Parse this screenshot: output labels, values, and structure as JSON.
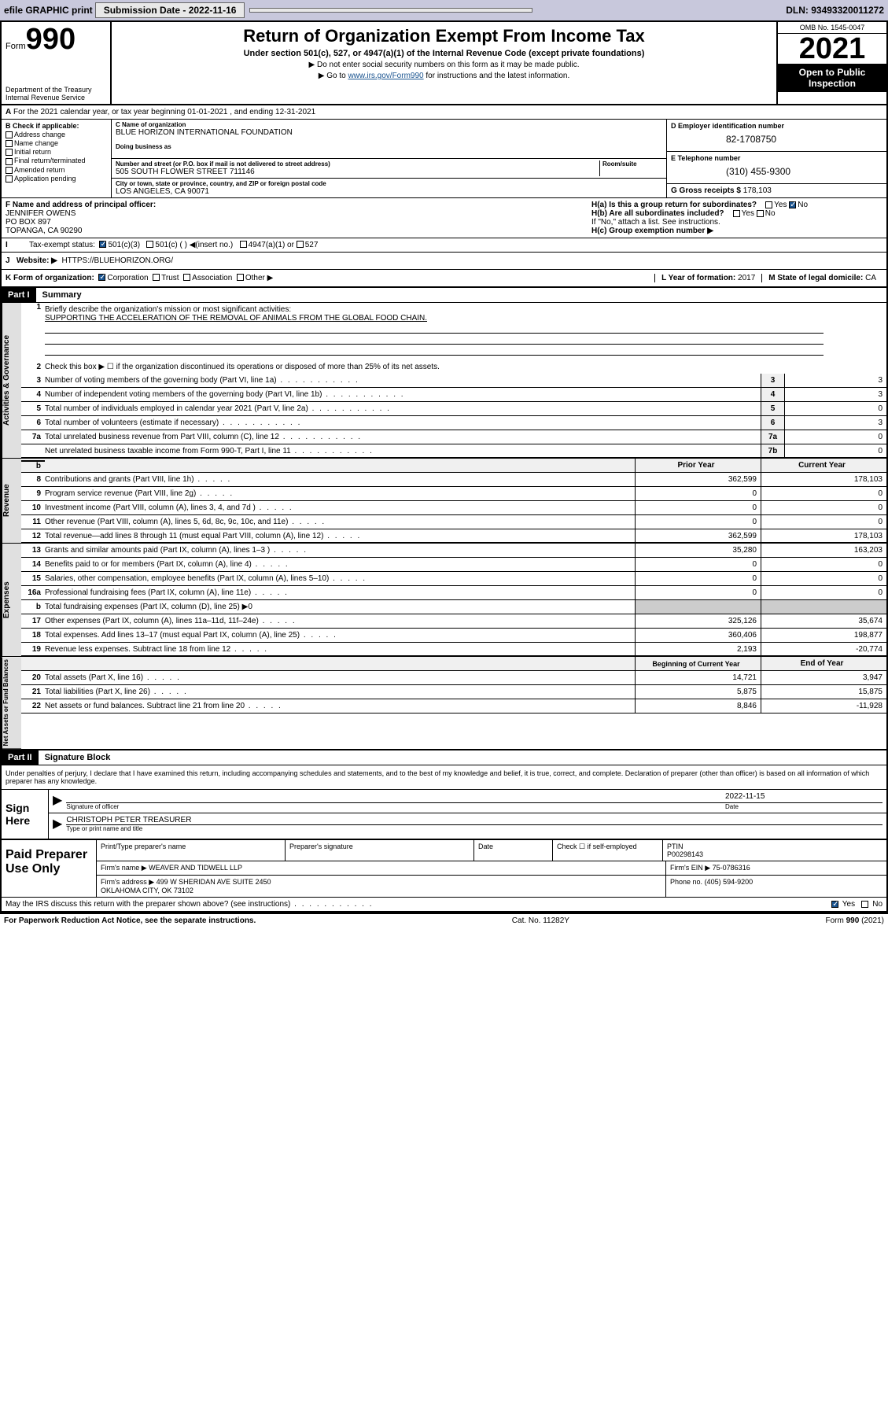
{
  "topbar": {
    "efile": "efile GRAPHIC print",
    "subdate_lbl": "Submission Date - 2022-11-16",
    "dln": "DLN: 93493320011272"
  },
  "header": {
    "form_word": "Form",
    "form_no": "990",
    "title": "Return of Organization Exempt From Income Tax",
    "sub1": "Under section 501(c), 527, or 4947(a)(1) of the Internal Revenue Code (except private foundations)",
    "sub2a": "▶ Do not enter social security numbers on this form as it may be made public.",
    "sub2b_pre": "▶ Go to ",
    "sub2b_link": "www.irs.gov/Form990",
    "sub2b_post": " for instructions and the latest information.",
    "dept": "Department of the Treasury\nInternal Revenue Service",
    "omb": "OMB No. 1545-0047",
    "year": "2021",
    "otp": "Open to Public Inspection"
  },
  "secA": {
    "tax_year": "For the 2021 calendar year, or tax year beginning 01-01-2021    , and ending 12-31-2021",
    "b_lbl": "B Check if applicable:",
    "checks": [
      "Address change",
      "Name change",
      "Initial return",
      "Final return/terminated",
      "Amended return",
      "Application pending"
    ],
    "c_lbl": "C Name of organization",
    "org_name": "BLUE HORIZON INTERNATIONAL FOUNDATION",
    "dba_lbl": "Doing business as",
    "addr_lbl": "Number and street (or P.O. box if mail is not delivered to street address)",
    "room_lbl": "Room/suite",
    "addr": "505 SOUTH FLOWER STREET 711146",
    "city_lbl": "City or town, state or province, country, and ZIP or foreign postal code",
    "city": "LOS ANGELES, CA  90071",
    "d_lbl": "D Employer identification number",
    "ein": "82-1708750",
    "e_lbl": "E Telephone number",
    "phone": "(310) 455-9300",
    "g_lbl": "G Gross receipts $",
    "gross": "178,103",
    "f_lbl": "F Name and address of principal officer:",
    "officer": "JENNIFER OWENS\nPO BOX 897\nTOPANGA, CA  90290",
    "ha": "H(a) Is this a group return for subordinates?",
    "hb": "H(b) Are all subordinates included?",
    "hb_note": "If \"No,\" attach a list. See instructions.",
    "hc": "H(c) Group exemption number ▶",
    "i_lbl": "Tax-exempt status:",
    "i_501c3": "501(c)(3)",
    "i_501c": "501(c) (  ) ◀(insert no.)",
    "i_4947": "4947(a)(1) or",
    "i_527": "527",
    "j_lbl": "Website: ▶",
    "website": "HTTPS://BLUEHORIZON.ORG/",
    "k_lbl": "K Form of organization:",
    "k_opts": [
      "Corporation",
      "Trust",
      "Association",
      "Other ▶"
    ],
    "l_lbl": "L Year of formation:",
    "l_val": "2017",
    "m_lbl": "M State of legal domicile:",
    "m_val": "CA"
  },
  "part1": {
    "hdr": "Part I",
    "title": "Summary",
    "r1_lbl": "Briefly describe the organization's mission or most significant activities:",
    "r1_val": "SUPPORTING THE ACCELERATION OF THE REMOVAL OF ANIMALS FROM THE GLOBAL FOOD CHAIN.",
    "r2": "Check this box ▶ ☐ if the organization discontinued its operations or disposed of more than 25% of its net assets.",
    "rows_gov": [
      {
        "n": "3",
        "t": "Number of voting members of the governing body (Part VI, line 1a)",
        "k": "3",
        "v": "3"
      },
      {
        "n": "4",
        "t": "Number of independent voting members of the governing body (Part VI, line 1b)",
        "k": "4",
        "v": "3"
      },
      {
        "n": "5",
        "t": "Total number of individuals employed in calendar year 2021 (Part V, line 2a)",
        "k": "5",
        "v": "0"
      },
      {
        "n": "6",
        "t": "Total number of volunteers (estimate if necessary)",
        "k": "6",
        "v": "3"
      },
      {
        "n": "7a",
        "t": "Total unrelated business revenue from Part VIII, column (C), line 12",
        "k": "7a",
        "v": "0"
      },
      {
        "n": "",
        "t": "Net unrelated business taxable income from Form 990-T, Part I, line 11",
        "k": "7b",
        "v": "0"
      }
    ],
    "col_prior": "Prior Year",
    "col_curr": "Current Year",
    "rows_rev": [
      {
        "n": "8",
        "t": "Contributions and grants (Part VIII, line 1h)",
        "p": "362,599",
        "c": "178,103"
      },
      {
        "n": "9",
        "t": "Program service revenue (Part VIII, line 2g)",
        "p": "0",
        "c": "0"
      },
      {
        "n": "10",
        "t": "Investment income (Part VIII, column (A), lines 3, 4, and 7d )",
        "p": "0",
        "c": "0"
      },
      {
        "n": "11",
        "t": "Other revenue (Part VIII, column (A), lines 5, 6d, 8c, 9c, 10c, and 11e)",
        "p": "0",
        "c": "0"
      },
      {
        "n": "12",
        "t": "Total revenue—add lines 8 through 11 (must equal Part VIII, column (A), line 12)",
        "p": "362,599",
        "c": "178,103"
      }
    ],
    "rows_exp": [
      {
        "n": "13",
        "t": "Grants and similar amounts paid (Part IX, column (A), lines 1–3 )",
        "p": "35,280",
        "c": "163,203"
      },
      {
        "n": "14",
        "t": "Benefits paid to or for members (Part IX, column (A), line 4)",
        "p": "0",
        "c": "0"
      },
      {
        "n": "15",
        "t": "Salaries, other compensation, employee benefits (Part IX, column (A), lines 5–10)",
        "p": "0",
        "c": "0"
      },
      {
        "n": "16a",
        "t": "Professional fundraising fees (Part IX, column (A), line 11e)",
        "p": "0",
        "c": "0"
      }
    ],
    "row_16b": {
      "n": "b",
      "t": "Total fundraising expenses (Part IX, column (D), line 25) ▶0"
    },
    "rows_exp2": [
      {
        "n": "17",
        "t": "Other expenses (Part IX, column (A), lines 11a–11d, 11f–24e)",
        "p": "325,126",
        "c": "35,674"
      },
      {
        "n": "18",
        "t": "Total expenses. Add lines 13–17 (must equal Part IX, column (A), line 25)",
        "p": "360,406",
        "c": "198,877"
      },
      {
        "n": "19",
        "t": "Revenue less expenses. Subtract line 18 from line 12",
        "p": "2,193",
        "c": "-20,774"
      }
    ],
    "col_begin": "Beginning of Current Year",
    "col_end": "End of Year",
    "rows_net": [
      {
        "n": "20",
        "t": "Total assets (Part X, line 16)",
        "p": "14,721",
        "c": "3,947"
      },
      {
        "n": "21",
        "t": "Total liabilities (Part X, line 26)",
        "p": "5,875",
        "c": "15,875"
      },
      {
        "n": "22",
        "t": "Net assets or fund balances. Subtract line 21 from line 20",
        "p": "8,846",
        "c": "-11,928"
      }
    ],
    "tab_gov": "Activities & Governance",
    "tab_rev": "Revenue",
    "tab_exp": "Expenses",
    "tab_net": "Net Assets or Fund Balances"
  },
  "part2": {
    "hdr": "Part II",
    "title": "Signature Block",
    "decl": "Under penalties of perjury, I declare that I have examined this return, including accompanying schedules and statements, and to the best of my knowledge and belief, it is true, correct, and complete. Declaration of preparer (other than officer) is based on all information of which preparer has any knowledge.",
    "sign_here": "Sign Here",
    "sig_officer": "Signature of officer",
    "date_lbl": "Date",
    "sig_date": "2022-11-15",
    "officer_name": "CHRISTOPH PETER TREASURER",
    "type_lbl": "Type or print name and title",
    "paid_prep": "Paid Preparer Use Only",
    "prep_name_lbl": "Print/Type preparer's name",
    "prep_sig_lbl": "Preparer's signature",
    "check_self": "Check ☐ if self-employed",
    "ptin_lbl": "PTIN",
    "ptin": "P00298143",
    "firm_name_lbl": "Firm's name    ▶",
    "firm_name": "WEAVER AND TIDWELL LLP",
    "firm_ein_lbl": "Firm's EIN ▶",
    "firm_ein": "75-0786316",
    "firm_addr_lbl": "Firm's address ▶",
    "firm_addr": "499 W SHERIDAN AVE SUITE 2450\nOKLAHOMA CITY, OK  73102",
    "phone_lbl": "Phone no.",
    "prep_phone": "(405) 594-9200",
    "discuss": "May the IRS discuss this return with the preparer shown above? (see instructions)"
  },
  "footer": {
    "left": "For Paperwork Reduction Act Notice, see the separate instructions.",
    "mid": "Cat. No. 11282Y",
    "right": "Form 990 (2021)"
  }
}
